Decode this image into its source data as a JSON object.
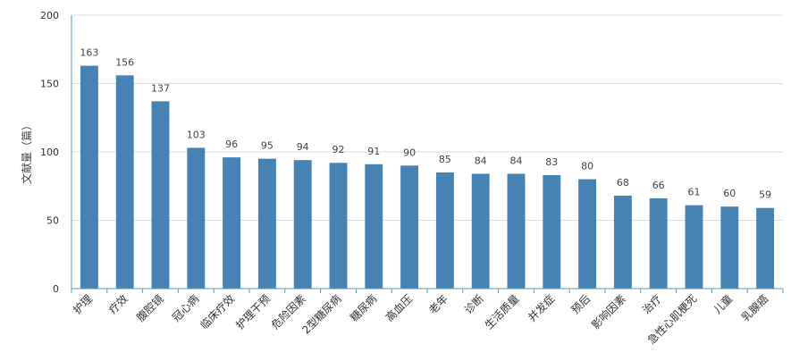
{
  "chart_data": {
    "type": "bar",
    "title": "",
    "xlabel": "",
    "ylabel": "文献量（篇）",
    "ylim": [
      0,
      200
    ],
    "yticks": [
      0,
      50,
      100,
      150,
      200
    ],
    "grid": true,
    "legend": "none",
    "categories": [
      "护理",
      "疗效",
      "腹腔镜",
      "冠心病",
      "临床疗效",
      "护理干预",
      "危险因素",
      "2型糖尿病",
      "糖尿病",
      "高血压",
      "老年",
      "诊断",
      "生活质量",
      "并发症",
      "预后",
      "影响因素",
      "治疗",
      "急性心肌梗死",
      "儿童",
      "乳腺癌"
    ],
    "values": [
      163,
      156,
      137,
      103,
      96,
      95,
      94,
      92,
      91,
      90,
      85,
      84,
      84,
      83,
      80,
      68,
      66,
      61,
      60,
      59
    ],
    "colors": {
      "bar": "#4682b4",
      "axis": "#5b9bb5",
      "grid": "#dddddd",
      "tick_text": "#333333",
      "label_text": "#444444"
    }
  }
}
